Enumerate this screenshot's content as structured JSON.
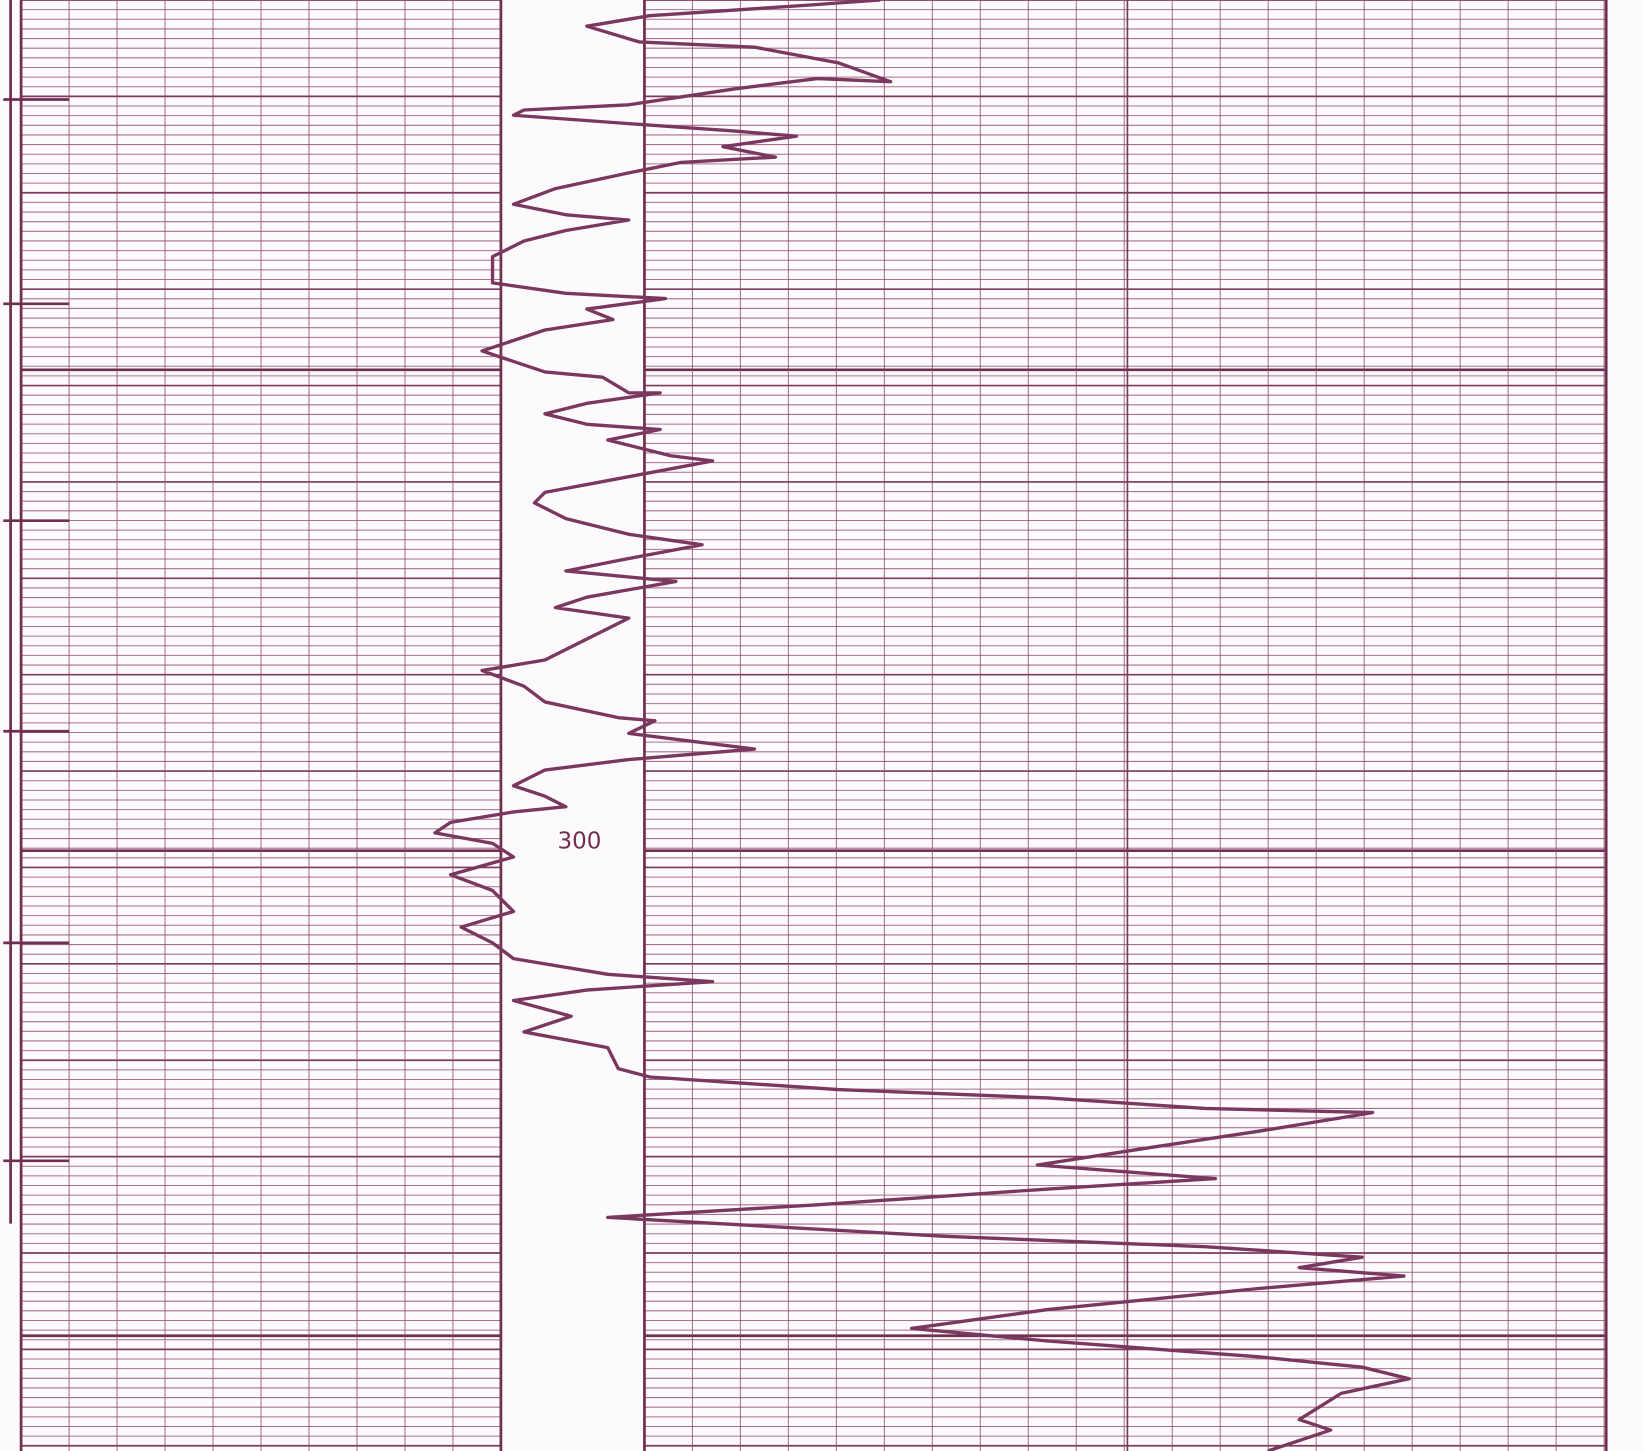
{
  "depth_label": "300"
}
